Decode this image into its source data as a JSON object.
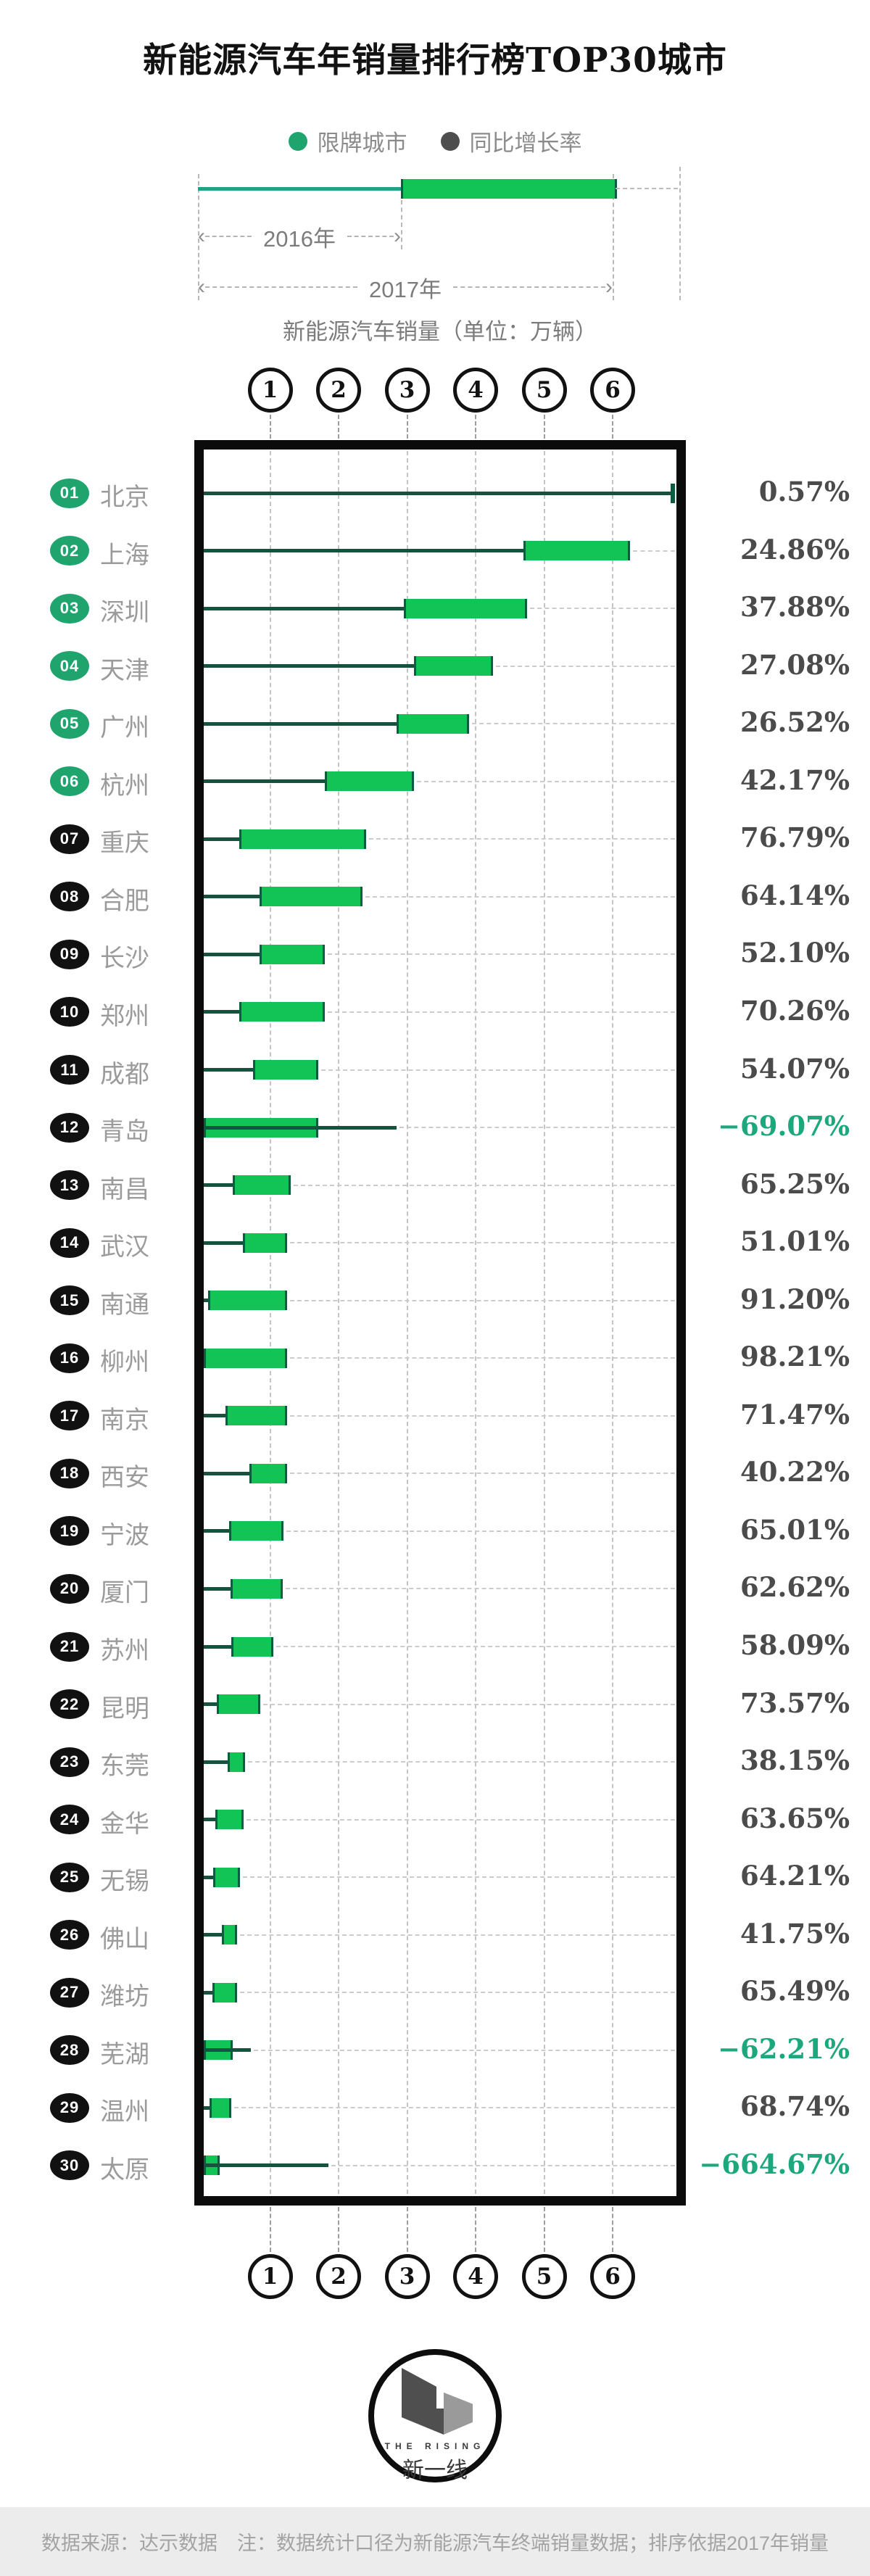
{
  "title": "新能源汽车年销量排行榜TOP30城市",
  "legend": {
    "restricted_label": "限牌城市",
    "growth_label": "同比增长率"
  },
  "explainer": {
    "year_2016": "2016年",
    "year_2017": "2017年",
    "axis_label": "新能源汽车销量（单位：万辆）"
  },
  "axis": {
    "ticks": [
      "1",
      "2",
      "3",
      "4",
      "5",
      "6"
    ],
    "xlim": [
      0,
      7
    ]
  },
  "chart_data": {
    "type": "bar",
    "title": "新能源汽车年销量排行榜TOP30城市",
    "xlabel": "新能源汽车销量（单位：万辆）",
    "xlim": [
      0,
      7
    ],
    "grid": "dashed-vertical",
    "legend_position": "top",
    "note": "每行：细线起点为0，绿色块区间约为2016年至2017年销量；负增长城市绿色块自0起，细线延伸至2016年销量",
    "rows": [
      {
        "rank": "01",
        "city": "北京",
        "restricted": true,
        "growth": "0.57%",
        "negative": false,
        "s2016": 6.85,
        "s2017": 6.92
      },
      {
        "rank": "02",
        "city": "上海",
        "restricted": true,
        "growth": "24.86%",
        "negative": false,
        "s2016": 4.7,
        "s2017": 6.25
      },
      {
        "rank": "03",
        "city": "深圳",
        "restricted": true,
        "growth": "37.88%",
        "negative": false,
        "s2016": 2.95,
        "s2017": 4.75
      },
      {
        "rank": "04",
        "city": "天津",
        "restricted": true,
        "growth": "27.08%",
        "negative": false,
        "s2016": 3.1,
        "s2017": 4.25
      },
      {
        "rank": "05",
        "city": "广州",
        "restricted": true,
        "growth": "26.52%",
        "negative": false,
        "s2016": 2.85,
        "s2017": 3.9
      },
      {
        "rank": "06",
        "city": "杭州",
        "restricted": true,
        "growth": "42.17%",
        "negative": false,
        "s2016": 1.8,
        "s2017": 3.1
      },
      {
        "rank": "07",
        "city": "重庆",
        "restricted": false,
        "growth": "76.79%",
        "negative": false,
        "s2016": 0.55,
        "s2017": 2.4
      },
      {
        "rank": "08",
        "city": "合肥",
        "restricted": false,
        "growth": "64.14%",
        "negative": false,
        "s2016": 0.85,
        "s2017": 2.35
      },
      {
        "rank": "09",
        "city": "长沙",
        "restricted": false,
        "growth": "52.10%",
        "negative": false,
        "s2016": 0.85,
        "s2017": 1.8
      },
      {
        "rank": "10",
        "city": "郑州",
        "restricted": false,
        "growth": "70.26%",
        "negative": false,
        "s2016": 0.55,
        "s2017": 1.8
      },
      {
        "rank": "11",
        "city": "成都",
        "restricted": false,
        "growth": "54.07%",
        "negative": false,
        "s2016": 0.75,
        "s2017": 1.7
      },
      {
        "rank": "12",
        "city": "青岛",
        "restricted": false,
        "growth": "-69.07%",
        "negative": true,
        "s2016": 2.85,
        "s2017": 1.7
      },
      {
        "rank": "13",
        "city": "南昌",
        "restricted": false,
        "growth": "65.25%",
        "negative": false,
        "s2016": 0.45,
        "s2017": 1.3
      },
      {
        "rank": "14",
        "city": "武汉",
        "restricted": false,
        "growth": "51.01%",
        "negative": false,
        "s2016": 0.6,
        "s2017": 1.25
      },
      {
        "rank": "15",
        "city": "南通",
        "restricted": false,
        "growth": "91.20%",
        "negative": false,
        "s2016": 0.1,
        "s2017": 1.25
      },
      {
        "rank": "16",
        "city": "柳州",
        "restricted": false,
        "growth": "98.21%",
        "negative": false,
        "s2016": 0.02,
        "s2017": 1.25
      },
      {
        "rank": "17",
        "city": "南京",
        "restricted": false,
        "growth": "71.47%",
        "negative": false,
        "s2016": 0.35,
        "s2017": 1.25
      },
      {
        "rank": "18",
        "city": "西安",
        "restricted": false,
        "growth": "40.22%",
        "negative": false,
        "s2016": 0.7,
        "s2017": 1.25
      },
      {
        "rank": "19",
        "city": "宁波",
        "restricted": false,
        "growth": "65.01%",
        "negative": false,
        "s2016": 0.4,
        "s2017": 1.2
      },
      {
        "rank": "20",
        "city": "厦门",
        "restricted": false,
        "growth": "62.62%",
        "negative": false,
        "s2016": 0.42,
        "s2017": 1.19
      },
      {
        "rank": "21",
        "city": "苏州",
        "restricted": false,
        "growth": "58.09%",
        "negative": false,
        "s2016": 0.43,
        "s2017": 1.05
      },
      {
        "rank": "22",
        "city": "昆明",
        "restricted": false,
        "growth": "73.57%",
        "negative": false,
        "s2016": 0.22,
        "s2017": 0.86
      },
      {
        "rank": "23",
        "city": "东莞",
        "restricted": false,
        "growth": "38.15%",
        "negative": false,
        "s2016": 0.38,
        "s2017": 0.64
      },
      {
        "rank": "24",
        "city": "金华",
        "restricted": false,
        "growth": "63.65%",
        "negative": false,
        "s2016": 0.2,
        "s2017": 0.61
      },
      {
        "rank": "25",
        "city": "无锡",
        "restricted": false,
        "growth": "64.21%",
        "negative": false,
        "s2016": 0.17,
        "s2017": 0.56
      },
      {
        "rank": "26",
        "city": "佛山",
        "restricted": false,
        "growth": "41.75%",
        "negative": false,
        "s2016": 0.3,
        "s2017": 0.52
      },
      {
        "rank": "27",
        "city": "潍坊",
        "restricted": false,
        "growth": "65.49%",
        "negative": false,
        "s2016": 0.16,
        "s2017": 0.52
      },
      {
        "rank": "28",
        "city": "芜湖",
        "restricted": false,
        "growth": "-62.21%",
        "negative": true,
        "s2016": 0.72,
        "s2017": 0.46
      },
      {
        "rank": "29",
        "city": "温州",
        "restricted": false,
        "growth": "68.74%",
        "negative": false,
        "s2016": 0.12,
        "s2017": 0.43
      },
      {
        "rank": "30",
        "city": "太原",
        "restricted": false,
        "growth": "-664.67%",
        "negative": true,
        "s2016": 1.85,
        "s2017": 0.26
      }
    ]
  },
  "logo": {
    "en": "THE RISING",
    "zh": "新一线"
  },
  "footer": {
    "note": "数据来源：达示数据　注：数据统计口径为新能源汽车终端销量数据；排序依据2017年销量"
  },
  "colors": {
    "block_green": "#12C356",
    "block_cap": "#0C5C40",
    "line_teal": "#17523F",
    "mini_line_teal": "#1FA286",
    "badge_restricted": "#1FA46E",
    "badge_normal": "#111111",
    "pct_positive": "#4B4B4B",
    "pct_negative": "#1CA87C",
    "city_gray": "#9B9B9B"
  }
}
